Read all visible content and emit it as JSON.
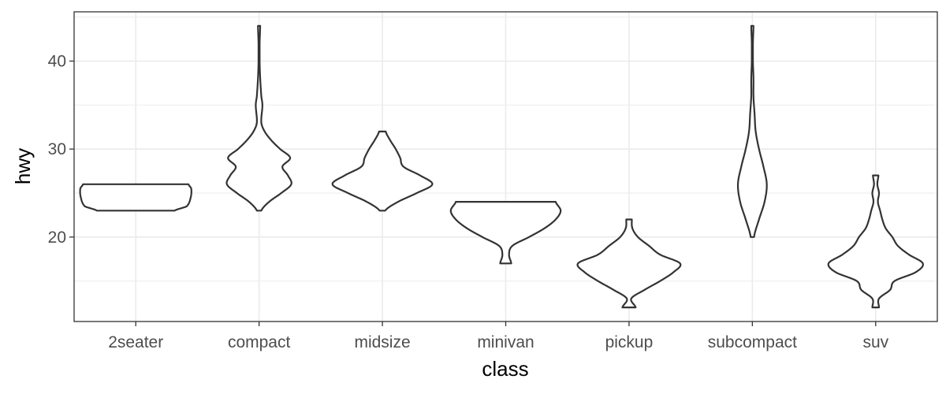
{
  "chart_data": {
    "type": "violin",
    "title": "",
    "xlabel": "class",
    "ylabel": "hwy",
    "ylim": [
      10.4,
      45.6
    ],
    "y_ticks": [
      20,
      30,
      40
    ],
    "grid": true,
    "theme": "bw",
    "categories": [
      "2seater",
      "compact",
      "midsize",
      "minivan",
      "pickup",
      "subcompact",
      "suv"
    ],
    "violins": [
      {
        "category": "2seater",
        "profile": [
          [
            23,
            0.7
          ],
          [
            23.5,
            0.92
          ],
          [
            24.5,
            0.99
          ],
          [
            25.5,
            1.0
          ],
          [
            26,
            0.95
          ]
        ]
      },
      {
        "category": "compact",
        "profile": [
          [
            23,
            0.04
          ],
          [
            24,
            0.18
          ],
          [
            25,
            0.4
          ],
          [
            26,
            0.58
          ],
          [
            27,
            0.52
          ],
          [
            28,
            0.42
          ],
          [
            29,
            0.56
          ],
          [
            30,
            0.38
          ],
          [
            31,
            0.22
          ],
          [
            32,
            0.1
          ],
          [
            33,
            0.04
          ],
          [
            35,
            0.06
          ],
          [
            36,
            0.04
          ],
          [
            38,
            0.02
          ],
          [
            40,
            0.01
          ],
          [
            42,
            0.01
          ],
          [
            44,
            0.02
          ]
        ]
      },
      {
        "category": "midsize",
        "profile": [
          [
            23,
            0.05
          ],
          [
            24,
            0.28
          ],
          [
            25,
            0.62
          ],
          [
            26,
            0.9
          ],
          [
            27,
            0.68
          ],
          [
            28,
            0.38
          ],
          [
            29,
            0.32
          ],
          [
            30,
            0.24
          ],
          [
            31,
            0.14
          ],
          [
            32,
            0.06
          ]
        ]
      },
      {
        "category": "minivan",
        "profile": [
          [
            17,
            0.1
          ],
          [
            18,
            0.06
          ],
          [
            19,
            0.12
          ],
          [
            20,
            0.42
          ],
          [
            21,
            0.7
          ],
          [
            22,
            0.9
          ],
          [
            23,
            0.99
          ],
          [
            24,
            0.9
          ]
        ]
      },
      {
        "category": "pickup",
        "profile": [
          [
            12,
            0.12
          ],
          [
            13,
            0.04
          ],
          [
            14,
            0.28
          ],
          [
            15,
            0.56
          ],
          [
            16,
            0.8
          ],
          [
            17,
            0.92
          ],
          [
            18,
            0.56
          ],
          [
            19,
            0.36
          ],
          [
            20,
            0.16
          ],
          [
            21,
            0.06
          ],
          [
            22,
            0.05
          ]
        ]
      },
      {
        "category": "subcompact",
        "profile": [
          [
            20,
            0.03
          ],
          [
            22,
            0.12
          ],
          [
            24,
            0.22
          ],
          [
            26,
            0.26
          ],
          [
            28,
            0.2
          ],
          [
            30,
            0.12
          ],
          [
            32,
            0.06
          ],
          [
            34,
            0.04
          ],
          [
            36,
            0.02
          ],
          [
            38,
            0.02
          ],
          [
            40,
            0.01
          ],
          [
            42,
            0.01
          ],
          [
            44,
            0.02
          ]
        ]
      },
      {
        "category": "suv",
        "profile": [
          [
            12,
            0.06
          ],
          [
            13,
            0.06
          ],
          [
            14,
            0.26
          ],
          [
            15,
            0.34
          ],
          [
            16,
            0.72
          ],
          [
            17,
            0.85
          ],
          [
            18,
            0.6
          ],
          [
            19,
            0.4
          ],
          [
            20,
            0.3
          ],
          [
            21,
            0.18
          ],
          [
            22,
            0.12
          ],
          [
            23,
            0.08
          ],
          [
            24,
            0.04
          ],
          [
            25,
            0.06
          ],
          [
            26,
            0.03
          ],
          [
            27,
            0.05
          ]
        ]
      }
    ]
  }
}
